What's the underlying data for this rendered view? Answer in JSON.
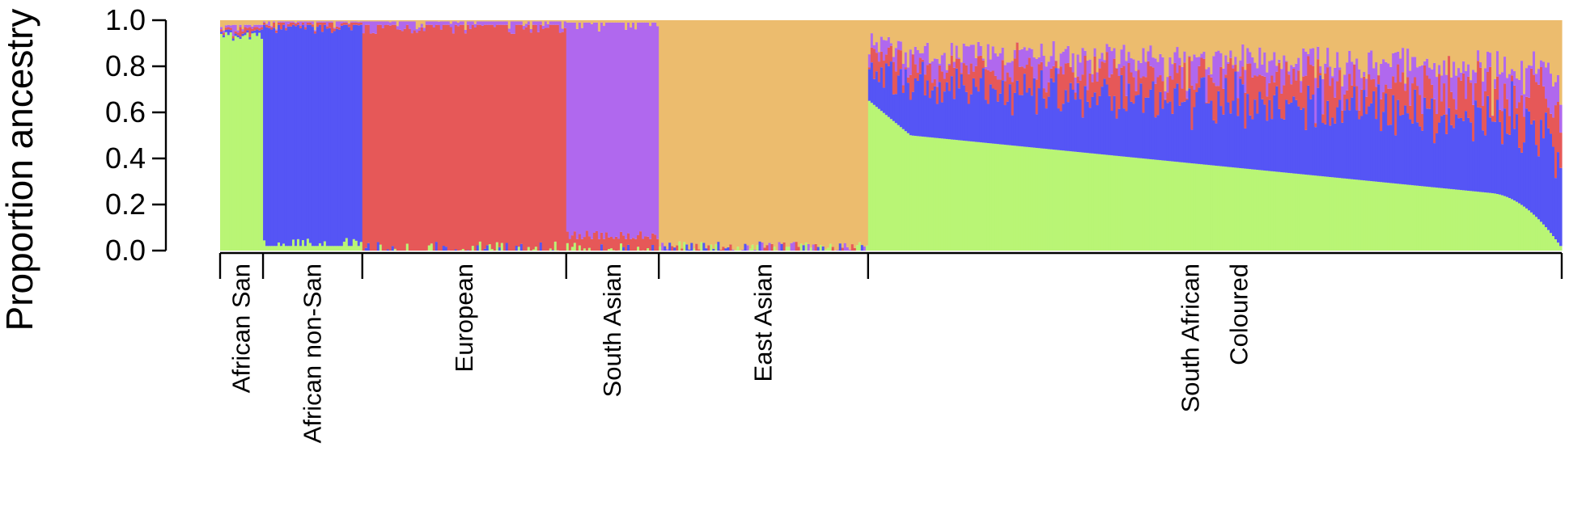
{
  "colors": {
    "green": "#b9f575",
    "blue": "#5555f5",
    "red": "#e65858",
    "purple": "#b068ee",
    "orange": "#ecbc6e"
  },
  "chart_data": {
    "type": "bar",
    "subtype": "stacked-admixture",
    "title": "",
    "xlabel": "",
    "ylabel": "Proportion ancestry",
    "ylim": [
      0,
      1
    ],
    "yticks": [
      "0.0",
      "0.2",
      "0.4",
      "0.6",
      "0.8",
      "1.0"
    ],
    "grid": false,
    "legend": "none",
    "components": [
      "green",
      "blue",
      "red",
      "purple",
      "orange"
    ],
    "groups": [
      {
        "name": "African San",
        "lines": [
          "African San"
        ],
        "span": [
          0.0,
          0.032
        ],
        "profile": [
          0.95,
          0.01,
          0.01,
          0.01,
          0.02
        ]
      },
      {
        "name": "African non-San",
        "lines": [
          "African non-San"
        ],
        "span": [
          0.032,
          0.106
        ],
        "profile": [
          0.02,
          0.96,
          0.01,
          0.005,
          0.005
        ]
      },
      {
        "name": "European",
        "lines": [
          "European"
        ],
        "span": [
          0.106,
          0.258
        ],
        "profile": [
          0.0,
          0.0,
          0.98,
          0.015,
          0.005
        ]
      },
      {
        "name": "South Asian",
        "lines": [
          "South Asian"
        ],
        "span": [
          0.258,
          0.327
        ],
        "profile": [
          0.0,
          0.0,
          0.05,
          0.94,
          0.01
        ]
      },
      {
        "name": "East Asian",
        "lines": [
          "East Asian"
        ],
        "span": [
          0.327,
          0.483
        ],
        "profile": [
          0.0,
          0.0,
          0.0,
          0.0,
          1.0
        ]
      },
      {
        "name": "South African Coloured",
        "lines": [
          "South African",
          "Coloured"
        ],
        "span": [
          0.483,
          1.0
        ],
        "profile": [
          0.33,
          0.2,
          0.18,
          0.14,
          0.15
        ],
        "green_range": [
          0.65,
          0.01
        ]
      }
    ]
  }
}
